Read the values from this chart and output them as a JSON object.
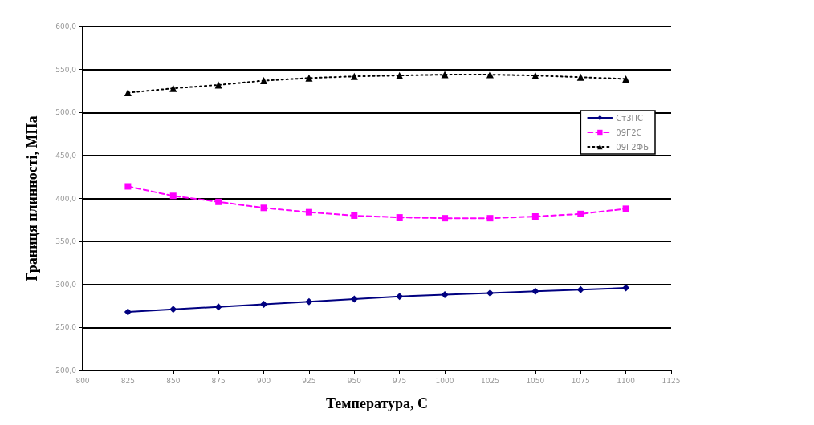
{
  "chart_data": {
    "type": "line",
    "xlabel": "Температура, С",
    "ylabel": "Границя плинності, МПа",
    "x": [
      825,
      850,
      875,
      900,
      925,
      950,
      975,
      1000,
      1025,
      1050,
      1075,
      1100
    ],
    "series": [
      {
        "name": "Ст3ПС",
        "color": "#000080",
        "marker": "diamond",
        "line_style": "solid",
        "values": [
          268,
          271,
          274,
          277,
          280,
          283,
          286,
          288,
          290,
          292,
          294,
          296
        ]
      },
      {
        "name": "09Г2С",
        "color": "#ff00ff",
        "marker": "square",
        "line_style": "dashed",
        "values": [
          414,
          403,
          396,
          389,
          384,
          380,
          378,
          377,
          377,
          379,
          382,
          388
        ]
      },
      {
        "name": "09Г2ФБ",
        "color": "#000000",
        "marker": "triangle",
        "line_style": "dotted",
        "values": [
          523,
          528,
          532,
          537,
          540,
          542,
          543,
          544,
          544,
          543,
          541,
          539
        ]
      }
    ],
    "xlim": [
      800,
      1125
    ],
    "xticks": [
      800,
      825,
      850,
      875,
      900,
      925,
      950,
      975,
      1000,
      1025,
      1050,
      1075,
      1100,
      1125
    ],
    "ylim": [
      200,
      600
    ],
    "yticks": [
      {
        "value": 200,
        "label": "200,0"
      },
      {
        "value": 250,
        "label": "250,0"
      },
      {
        "value": 300,
        "label": "300,0"
      },
      {
        "value": 350,
        "label": "350,0"
      },
      {
        "value": 400,
        "label": "400,0"
      },
      {
        "value": 450,
        "label": "450,0"
      },
      {
        "value": 500,
        "label": "500,0"
      },
      {
        "value": 550,
        "label": "550,0"
      },
      {
        "value": 600,
        "label": "600,0"
      }
    ],
    "grid": "y",
    "legend": "right"
  }
}
